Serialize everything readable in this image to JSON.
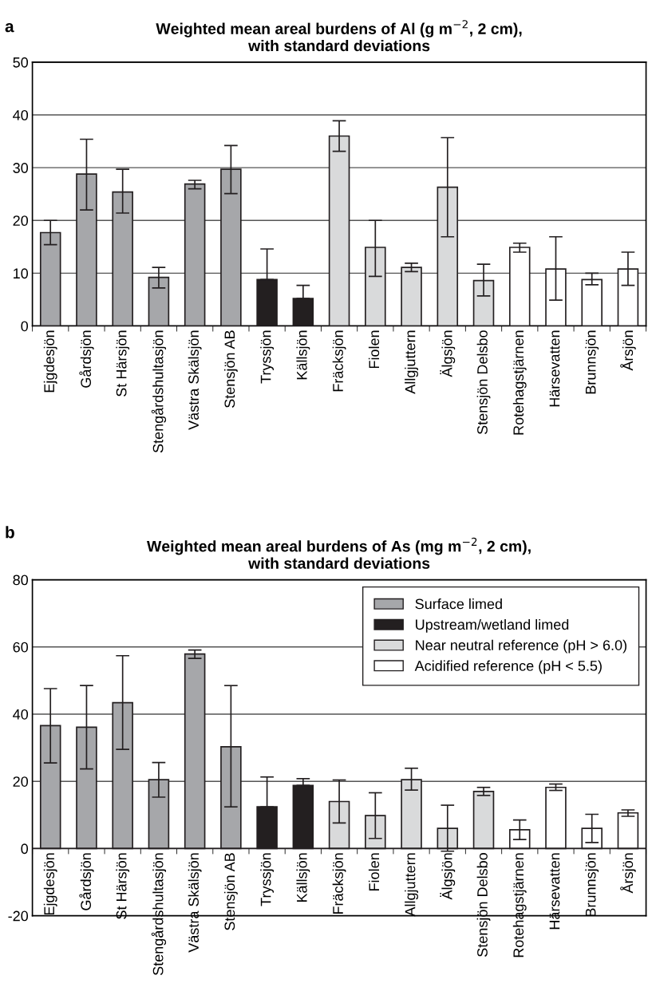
{
  "chart_data": [
    {
      "type": "bar",
      "title": "Weighted mean areal burdens of Al (g m$^{−2}$, 2 cm),\nwith standard deviations",
      "annotations": [
        "a"
      ],
      "categories": [
        "Ejgdesjön",
        "Gårdsjön",
        "St Härsjön",
        "Stengårdshultasjön",
        "Västra Skälsjön",
        "Stensjön AB",
        "Tryssjön",
        "Källsjön",
        "Fräcksjön",
        "Fiolen",
        "Allgjuttern",
        "Älgsjön",
        "Stensjön Delsbo",
        "Rotehagstjärnen",
        "Härsevatten",
        "Brunnsjön",
        "Årsjön"
      ],
      "stacked": true,
      "series": [
        {
          "color": "#a6a7aa",
          "values": [
            17.7,
            28.8,
            25.4,
            9.2,
            26.9,
            29.7,
            null,
            null,
            null,
            null,
            null,
            null,
            null,
            null,
            null,
            null,
            null
          ],
          "errors": [
            [
              15.4,
              20
            ],
            [
              22,
              35.4
            ],
            [
              21.4,
              29.7
            ],
            [
              7.2,
              11.1
            ],
            [
              26,
              27.6
            ],
            [
              25.1,
              34.2
            ],
            null,
            null,
            null,
            null,
            null,
            null,
            null,
            null,
            null,
            null,
            null
          ]
        },
        {
          "color": "#231f20",
          "values": [
            null,
            null,
            null,
            null,
            null,
            null,
            8.8,
            5.2,
            null,
            null,
            null,
            null,
            null,
            null,
            null,
            null,
            null
          ],
          "errors": [
            null,
            null,
            null,
            null,
            null,
            null,
            [
              8.8,
              14.6
            ],
            [
              5.2,
              7.7
            ],
            null,
            null,
            null,
            null,
            null,
            null,
            null,
            null,
            null
          ]
        },
        {
          "color": "#d9dadb",
          "values": [
            null,
            null,
            null,
            null,
            null,
            null,
            null,
            null,
            36,
            14.9,
            11.1,
            26.3,
            8.6,
            null,
            null,
            null,
            null
          ],
          "errors": [
            null,
            null,
            null,
            null,
            null,
            null,
            null,
            null,
            [
              33.1,
              38.9
            ],
            [
              9.4,
              20
            ],
            [
              10.3,
              11.9
            ],
            [
              16.9,
              35.7
            ],
            [
              5.7,
              11.7
            ],
            null,
            null,
            null,
            null
          ]
        },
        {
          "color": "#ffffff",
          "values": [
            null,
            null,
            null,
            null,
            null,
            null,
            null,
            null,
            null,
            null,
            null,
            null,
            null,
            14.9,
            10.8,
            8.8,
            10.8
          ],
          "errors": [
            null,
            null,
            null,
            null,
            null,
            null,
            null,
            null,
            null,
            null,
            null,
            null,
            null,
            [
              14,
              15.7
            ],
            [
              4.9,
              16.9
            ],
            [
              7.8,
              10
            ],
            [
              7.7,
              14
            ]
          ]
        }
      ],
      "ylim": [
        0,
        50
      ],
      "yticks": [
        0,
        10,
        20,
        30,
        40,
        50
      ],
      "grid": "y",
      "legend": false
    },
    {
      "type": "bar",
      "title": "Weighted mean areal burdens of As (mg m$^{−2}$, 2 cm),\nwith standard deviations",
      "annotations": [
        "b"
      ],
      "categories": [
        "Ejgdesjön",
        "Gårdsjön",
        "St Härsjön",
        "Stengårdshultasjön",
        "Västra Skälsjön",
        "Stensjön AB",
        "Tryssjön",
        "Källsjön",
        "Fräcksjön",
        "Fiolen",
        "Allgjuttern",
        "Älgsjön",
        "Stensjön Delsbo",
        "Rotehagstjärnen",
        "Härsevatten",
        "Brunnsjön",
        "Årsjön"
      ],
      "stacked": true,
      "series": [
        {
          "name": "Surface limed",
          "color": "#a6a7aa",
          "values": [
            36.6,
            36.1,
            43.4,
            20.5,
            57.9,
            30.3,
            null,
            null,
            null,
            null,
            null,
            null,
            null,
            null,
            null,
            null,
            null
          ],
          "errors": [
            [
              25.5,
              47.6
            ],
            [
              23.7,
              48.5
            ],
            [
              29.5,
              57.4
            ],
            [
              15.3,
              25.6
            ],
            [
              56.6,
              59.1
            ],
            [
              12.4,
              48.5
            ],
            null,
            null,
            null,
            null,
            null,
            null,
            null,
            null,
            null,
            null,
            null
          ]
        },
        {
          "name": "Upstream/wetland limed",
          "color": "#231f20",
          "values": [
            null,
            null,
            null,
            null,
            null,
            null,
            12.4,
            18.8,
            null,
            null,
            null,
            null,
            null,
            null,
            null,
            null,
            null
          ],
          "errors": [
            null,
            null,
            null,
            null,
            null,
            null,
            [
              12.4,
              21.3
            ],
            [
              18.8,
              20.8
            ],
            null,
            null,
            null,
            null,
            null,
            null,
            null,
            null,
            null
          ]
        },
        {
          "name": "Near neutral reference (pH > 6.0)",
          "color": "#d9dadb",
          "values": [
            null,
            null,
            null,
            null,
            null,
            null,
            null,
            null,
            14.0,
            9.8,
            20.5,
            6.0,
            17.0,
            null,
            null,
            null,
            null
          ],
          "errors": [
            null,
            null,
            null,
            null,
            null,
            null,
            null,
            null,
            [
              7.6,
              20.4
            ],
            [
              3.0,
              16.6
            ],
            [
              17.4,
              23.9
            ],
            [
              -0.8,
              12.9
            ],
            [
              15.8,
              18.2
            ],
            null,
            null,
            null,
            null
          ]
        },
        {
          "name": "Acidified reference (pH < 5.5)",
          "color": "#ffffff",
          "values": [
            null,
            null,
            null,
            null,
            null,
            null,
            null,
            null,
            null,
            null,
            null,
            null,
            null,
            5.6,
            18.2,
            6.0,
            10.6
          ],
          "errors": [
            null,
            null,
            null,
            null,
            null,
            null,
            null,
            null,
            null,
            null,
            null,
            null,
            null,
            [
              2.7,
              8.5
            ],
            [
              17.3,
              19.2
            ],
            [
              1.8,
              10.2
            ],
            [
              9.6,
              11.5
            ]
          ]
        }
      ],
      "ylim": [
        -20,
        80
      ],
      "yticks": [
        {
          "value": -20,
          "label": "-20"
        },
        0,
        20,
        40,
        60,
        80
      ],
      "grid": "y",
      "legend": "top right"
    }
  ]
}
